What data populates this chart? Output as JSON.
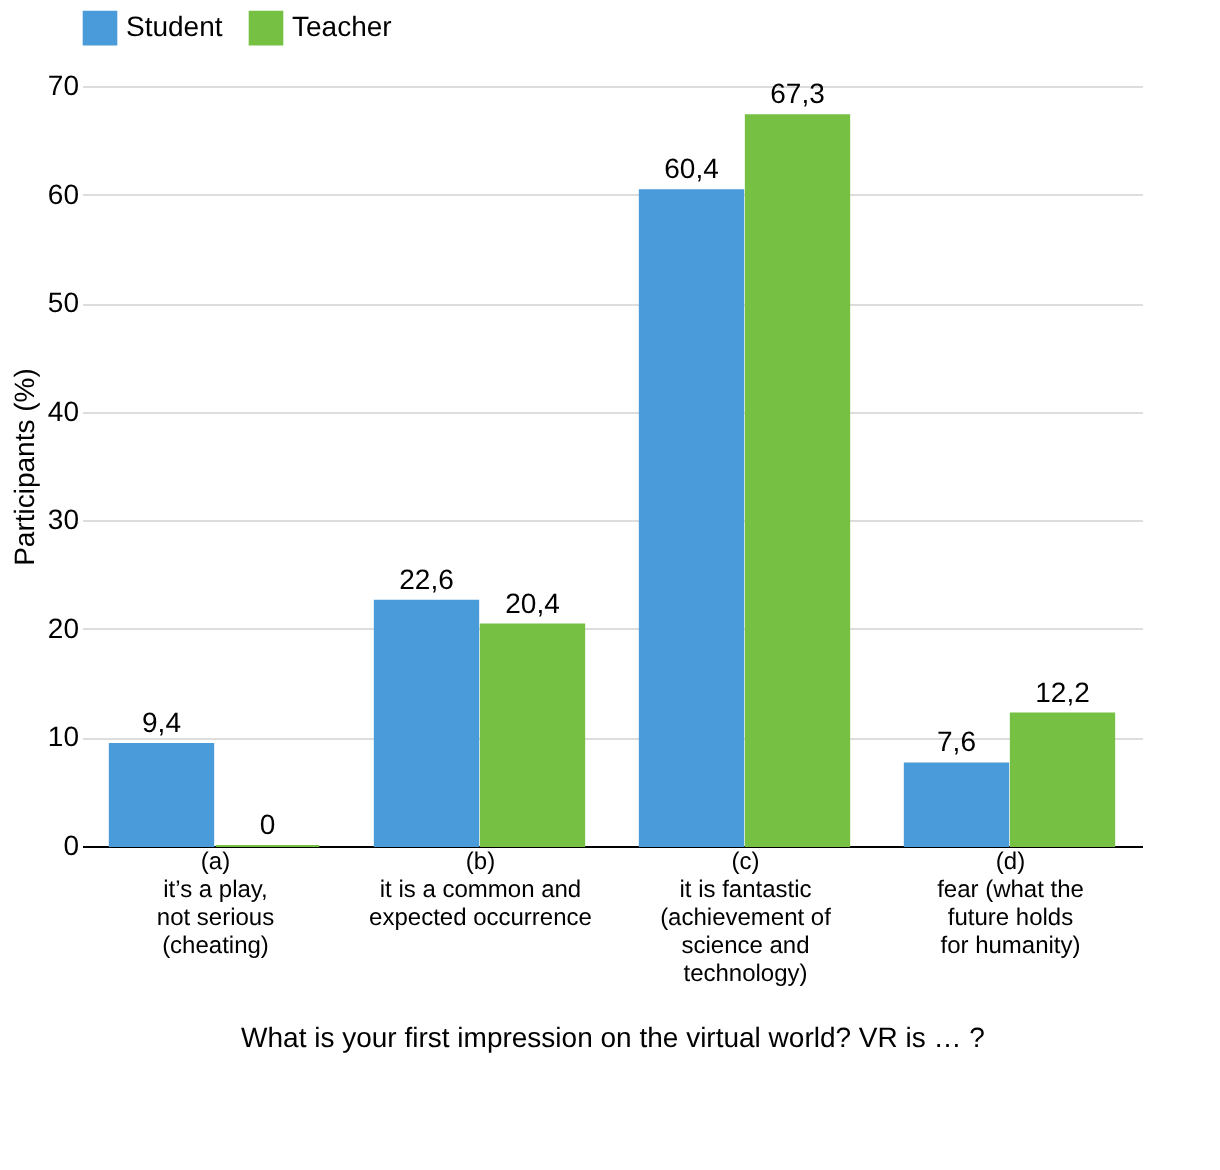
{
  "chart_data": {
    "type": "bar",
    "xlabel": "What is your first impression on the virtual world? VR is … ?",
    "ylabel": "Participants (%)",
    "categories": [
      "(a)\nit’s a play,\nnot serious\n(cheating)",
      "(b)\nit is a common and\nexpected occurrence",
      "(c)\nit is fantastic\n(achievement of\nscience and\ntechnology)",
      "(d)\nfear (what the\nfuture holds\nfor humanity)"
    ],
    "series": [
      {
        "name": "Student",
        "color": "#4a9bd9",
        "values": [
          9.4,
          22.6,
          60.4,
          7.6
        ],
        "value_labels": [
          "9,4",
          "22,6",
          "60,4",
          "7,6"
        ]
      },
      {
        "name": "Teacher",
        "color": "#76c043",
        "values": [
          0,
          20.4,
          67.3,
          12.2
        ],
        "value_labels": [
          "0",
          "20,4",
          "67,3",
          "12,2"
        ]
      }
    ],
    "ylim": [
      0,
      70
    ],
    "yticks": [
      0,
      10,
      20,
      30,
      40,
      50,
      60,
      70
    ],
    "grid": "y",
    "legend": "top"
  }
}
